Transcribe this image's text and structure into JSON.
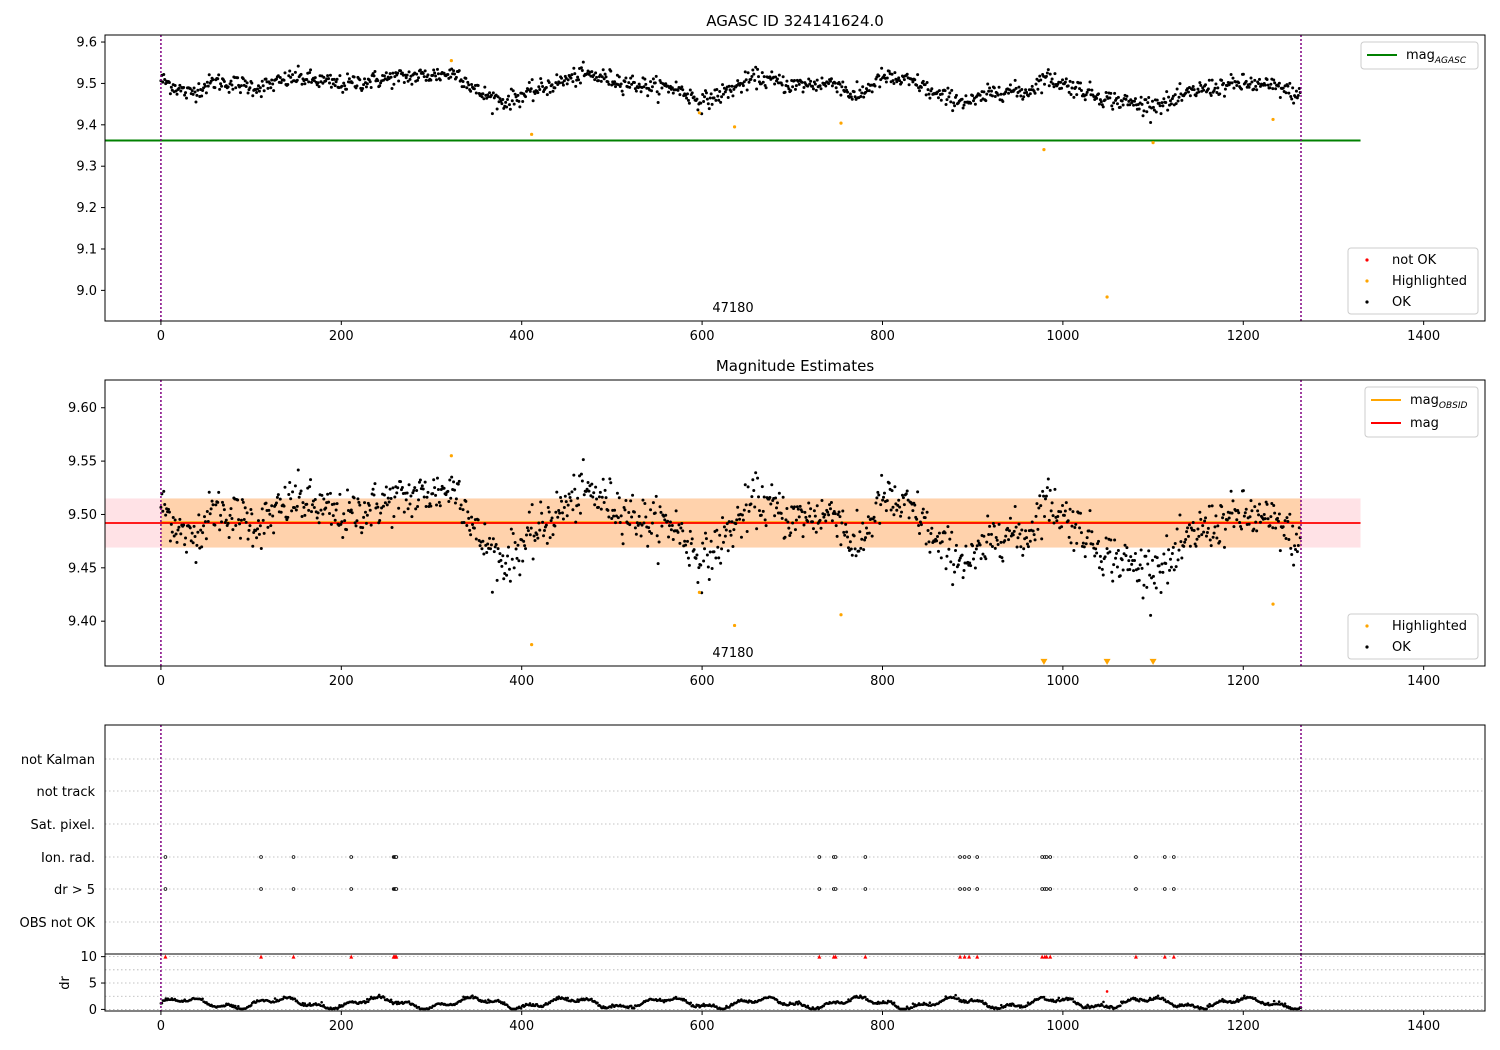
{
  "chart_data": [
    {
      "type": "scatter",
      "title": "AGASC ID 324141624.0",
      "xlim": [
        -62,
        1468
      ],
      "ylim": [
        8.926,
        9.617
      ],
      "x_ticks": [
        0,
        200,
        400,
        600,
        800,
        1000,
        1200,
        1400
      ],
      "y_ticks": [
        9.0,
        9.1,
        9.2,
        9.3,
        9.4,
        9.5,
        9.6
      ],
      "grid": false,
      "legend_upper": {
        "placement": "upper-right",
        "entries": [
          {
            "label": "mag",
            "sub": "AGASC",
            "color": "#008000"
          }
        ]
      },
      "legend_lower": {
        "placement": "lower-right",
        "entries": [
          {
            "label": "not OK",
            "color": "#ff0000"
          },
          {
            "label": "Highlighted",
            "color": "#ffa500"
          },
          {
            "label": "OK",
            "color": "#000000"
          }
        ]
      },
      "obsid_label": {
        "text": "47180",
        "x": 633
      },
      "vlines": [
        0,
        1264
      ],
      "hline": {
        "y": 9.362,
        "x0": -62,
        "x1": 1330,
        "color": "#008000"
      },
      "series": [
        {
          "name": "OK",
          "color": "#000000",
          "generated": true
        },
        {
          "name": "Highlighted",
          "color": "#ffa500",
          "points": [
            [
              322,
              9.555
            ],
            [
              411,
              9.377
            ],
            [
              597,
              9.429
            ],
            [
              636,
              9.395
            ],
            [
              754,
              9.404
            ],
            [
              979,
              9.34
            ],
            [
              1049,
              8.984
            ],
            [
              1100,
              9.357
            ],
            [
              1233,
              9.413
            ]
          ]
        }
      ]
    },
    {
      "type": "scatter",
      "title": "Magnitude Estimates",
      "xlim": [
        -62,
        1468
      ],
      "ylim": [
        9.358,
        9.626
      ],
      "x_ticks": [
        0,
        200,
        400,
        600,
        800,
        1000,
        1200,
        1400
      ],
      "y_ticks": [
        9.4,
        9.45,
        9.5,
        9.55,
        9.6
      ],
      "grid": false,
      "legend_upper": {
        "placement": "upper-right",
        "entries": [
          {
            "label": "mag",
            "sub": "OBSID",
            "color": "#ffa500"
          },
          {
            "label": "mag",
            "color": "#ff0000"
          }
        ]
      },
      "legend_lower": {
        "placement": "lower-right",
        "entries": [
          {
            "label": "Highlighted",
            "color": "#ffa500"
          },
          {
            "label": "OK",
            "color": "#000000"
          }
        ]
      },
      "obsid_label": {
        "text": "47180",
        "x": 633
      },
      "vlines": [
        0,
        1264
      ],
      "mag_line": {
        "y": 9.492,
        "color": "#ff0000"
      },
      "mag_obsid_line": {
        "y": 9.4925,
        "color": "#ffa500"
      },
      "band": {
        "y0": 9.469,
        "y1": 9.515,
        "x0": -62,
        "x1": 1330
      },
      "series": [
        {
          "name": "OK",
          "color": "#000000",
          "generated": true
        },
        {
          "name": "Highlighted",
          "color": "#ffa500",
          "points": [
            [
              322,
              9.555
            ],
            [
              411,
              9.378
            ],
            [
              597,
              9.427
            ],
            [
              636,
              9.396
            ],
            [
              754,
              9.406
            ],
            [
              1233,
              9.416
            ]
          ]
        },
        {
          "name": "Highlighted",
          "color": "#ffa500",
          "marker": "triangle-down",
          "points": [
            [
              979,
              9.36
            ],
            [
              1049,
              9.36
            ],
            [
              1100,
              9.36
            ]
          ]
        }
      ]
    },
    {
      "type": "scatter",
      "title": "",
      "xlim": [
        -62,
        1468
      ],
      "x_ticks": [
        0,
        200,
        400,
        600,
        800,
        1000,
        1200,
        1400
      ],
      "flag_categories": [
        "not Kalman",
        "not track",
        "Sat. pixel.",
        "Ion. rad.",
        "dr > 5",
        "OBS not OK"
      ],
      "flag_points": {
        "Ion. rad.": [
          5,
          111,
          147,
          211,
          258,
          259,
          260,
          261,
          730,
          746,
          748,
          781,
          886,
          891,
          896,
          905,
          977,
          980,
          982,
          986,
          1081,
          1113,
          1123
        ],
        "dr > 5": [
          5,
          111,
          147,
          211,
          258,
          259,
          260,
          261,
          730,
          746,
          748,
          781,
          886,
          891,
          896,
          905,
          977,
          980,
          982,
          986,
          1081,
          1113,
          1123
        ]
      },
      "dr_panel": {
        "ylabel": "dr",
        "ylim": [
          -0.3,
          10.5
        ],
        "y_ticks": [
          0,
          5,
          10
        ],
        "clip_value": 10,
        "clipped_x": [
          5,
          111,
          147,
          211,
          258,
          259,
          260,
          261,
          730,
          746,
          748,
          781,
          886,
          891,
          896,
          905,
          977,
          980,
          982,
          986,
          1081,
          1113,
          1123
        ],
        "outliers": [
          [
            1049,
            3.4
          ]
        ],
        "generated": true
      },
      "vlines": [
        0,
        1264
      ]
    }
  ]
}
